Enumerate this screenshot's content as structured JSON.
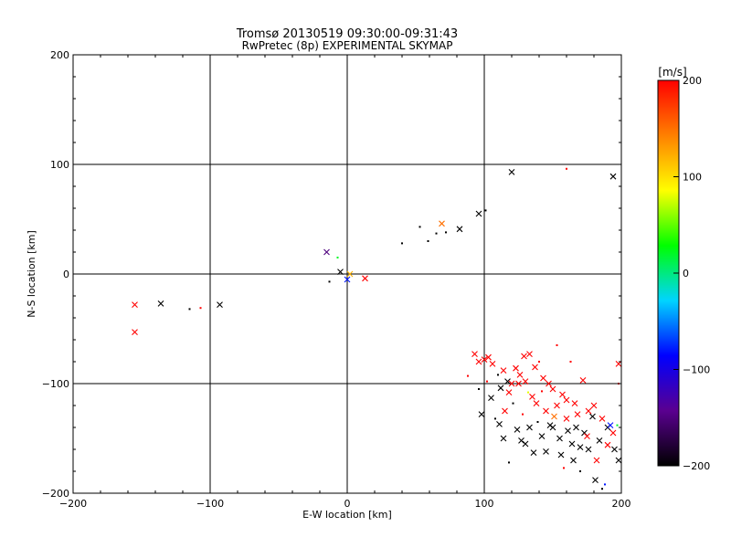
{
  "chart_data": {
    "type": "scatter",
    "title": "Tromsø 20130519 09:30:00-09:31:43",
    "subtitle": "RwPretec (8p) EXPERIMENTAL SKYMAP",
    "xlabel": "E-W location [km]",
    "ylabel": "N-S location [km]",
    "xlim": [
      -200,
      200
    ],
    "ylim": [
      -200,
      200
    ],
    "xticks": [
      -200,
      -100,
      0,
      100,
      200
    ],
    "yticks": [
      -200,
      -100,
      0,
      100,
      200
    ],
    "grid": true,
    "colorbar": {
      "label": "[m/s]",
      "range": [
        -200,
        200
      ],
      "ticks": [
        -200,
        -100,
        0,
        100,
        200
      ],
      "stops": [
        "#000000",
        "#5a0090",
        "#0000ff",
        "#00d4ff",
        "#00ff00",
        "#ffff00",
        "#ff8000",
        "#ff0000"
      ]
    },
    "points": [
      {
        "x": -155,
        "y": -28,
        "v": 200,
        "m": "x"
      },
      {
        "x": -155,
        "y": -53,
        "v": 200,
        "m": "x"
      },
      {
        "x": -136,
        "y": -27,
        "v": -200,
        "m": "x"
      },
      {
        "x": -115,
        "y": -32,
        "v": -200,
        "m": "d"
      },
      {
        "x": -107,
        "y": -31,
        "v": 200,
        "m": "d"
      },
      {
        "x": -93,
        "y": -28,
        "v": -200,
        "m": "x"
      },
      {
        "x": -15,
        "y": 20,
        "v": -150,
        "m": "x"
      },
      {
        "x": -13,
        "y": -7,
        "v": -200,
        "m": "d"
      },
      {
        "x": -7,
        "y": 15,
        "v": 20,
        "m": "d"
      },
      {
        "x": -5,
        "y": 2,
        "v": -200,
        "m": "x"
      },
      {
        "x": 0,
        "y": -5,
        "v": -80,
        "m": "x"
      },
      {
        "x": 2,
        "y": 0,
        "v": 120,
        "m": "x"
      },
      {
        "x": 13,
        "y": -4,
        "v": 200,
        "m": "x"
      },
      {
        "x": 40,
        "y": 28,
        "v": -200,
        "m": "d"
      },
      {
        "x": 53,
        "y": 43,
        "v": -200,
        "m": "d"
      },
      {
        "x": 59,
        "y": 30,
        "v": -200,
        "m": "d"
      },
      {
        "x": 65,
        "y": 37,
        "v": -200,
        "m": "d"
      },
      {
        "x": 69,
        "y": 46,
        "v": 150,
        "m": "x"
      },
      {
        "x": 72,
        "y": 38,
        "v": -200,
        "m": "d"
      },
      {
        "x": 82,
        "y": 41,
        "v": -200,
        "m": "x"
      },
      {
        "x": 96,
        "y": 55,
        "v": -200,
        "m": "x"
      },
      {
        "x": 101,
        "y": 58,
        "v": -200,
        "m": "d"
      },
      {
        "x": 120,
        "y": 93,
        "v": -200,
        "m": "x"
      },
      {
        "x": 160,
        "y": 96,
        "v": 200,
        "m": "d"
      },
      {
        "x": 194,
        "y": 89,
        "v": -200,
        "m": "x"
      },
      {
        "x": 88,
        "y": -93,
        "v": 200,
        "m": "d"
      },
      {
        "x": 93,
        "y": -73,
        "v": 200,
        "m": "x"
      },
      {
        "x": 96,
        "y": -80,
        "v": 200,
        "m": "x"
      },
      {
        "x": 100,
        "y": -78,
        "v": 200,
        "m": "x"
      },
      {
        "x": 103,
        "y": -76,
        "v": 200,
        "m": "x"
      },
      {
        "x": 106,
        "y": -82,
        "v": 200,
        "m": "x"
      },
      {
        "x": 102,
        "y": -98,
        "v": 200,
        "m": "d"
      },
      {
        "x": 110,
        "y": -92,
        "v": -200,
        "m": "d"
      },
      {
        "x": 114,
        "y": -88,
        "v": 200,
        "m": "x"
      },
      {
        "x": 117,
        "y": -98,
        "v": -200,
        "m": "x"
      },
      {
        "x": 120,
        "y": -100,
        "v": 200,
        "m": "x"
      },
      {
        "x": 123,
        "y": -86,
        "v": 200,
        "m": "x"
      },
      {
        "x": 126,
        "y": -92,
        "v": 200,
        "m": "x"
      },
      {
        "x": 129,
        "y": -75,
        "v": 200,
        "m": "x"
      },
      {
        "x": 133,
        "y": -73,
        "v": 200,
        "m": "x"
      },
      {
        "x": 137,
        "y": -85,
        "v": 200,
        "m": "x"
      },
      {
        "x": 140,
        "y": -80,
        "v": 200,
        "m": "d"
      },
      {
        "x": 143,
        "y": -95,
        "v": 200,
        "m": "x"
      },
      {
        "x": 147,
        "y": -100,
        "v": 200,
        "m": "x"
      },
      {
        "x": 150,
        "y": -105,
        "v": 200,
        "m": "x"
      },
      {
        "x": 153,
        "y": -65,
        "v": 200,
        "m": "d"
      },
      {
        "x": 157,
        "y": -110,
        "v": 200,
        "m": "x"
      },
      {
        "x": 160,
        "y": -115,
        "v": 200,
        "m": "x"
      },
      {
        "x": 163,
        "y": -80,
        "v": 200,
        "m": "d"
      },
      {
        "x": 166,
        "y": -118,
        "v": 200,
        "m": "x"
      },
      {
        "x": 172,
        "y": -97,
        "v": 200,
        "m": "x"
      },
      {
        "x": 176,
        "y": -125,
        "v": 200,
        "m": "x"
      },
      {
        "x": 180,
        "y": -120,
        "v": 200,
        "m": "x"
      },
      {
        "x": 186,
        "y": -132,
        "v": 200,
        "m": "x"
      },
      {
        "x": 194,
        "y": -145,
        "v": 200,
        "m": "x"
      },
      {
        "x": 198,
        "y": -82,
        "v": 200,
        "m": "x"
      },
      {
        "x": 198,
        "y": -100,
        "v": 200,
        "m": "d"
      },
      {
        "x": 96,
        "y": -105,
        "v": -200,
        "m": "d"
      },
      {
        "x": 98,
        "y": -128,
        "v": -200,
        "m": "x"
      },
      {
        "x": 105,
        "y": -113,
        "v": -200,
        "m": "x"
      },
      {
        "x": 108,
        "y": -132,
        "v": -200,
        "m": "d"
      },
      {
        "x": 111,
        "y": -137,
        "v": -200,
        "m": "x"
      },
      {
        "x": 114,
        "y": -150,
        "v": -200,
        "m": "x"
      },
      {
        "x": 118,
        "y": -172,
        "v": -200,
        "m": "d"
      },
      {
        "x": 121,
        "y": -118,
        "v": -200,
        "m": "d"
      },
      {
        "x": 124,
        "y": -142,
        "v": -200,
        "m": "x"
      },
      {
        "x": 127,
        "y": -152,
        "v": -200,
        "m": "x"
      },
      {
        "x": 130,
        "y": -155,
        "v": -200,
        "m": "x"
      },
      {
        "x": 133,
        "y": -140,
        "v": -200,
        "m": "x"
      },
      {
        "x": 136,
        "y": -163,
        "v": -200,
        "m": "x"
      },
      {
        "x": 139,
        "y": -135,
        "v": -200,
        "m": "d"
      },
      {
        "x": 142,
        "y": -148,
        "v": -200,
        "m": "x"
      },
      {
        "x": 145,
        "y": -162,
        "v": -200,
        "m": "x"
      },
      {
        "x": 148,
        "y": -138,
        "v": -200,
        "m": "x"
      },
      {
        "x": 151,
        "y": -130,
        "v": 150,
        "m": "x"
      },
      {
        "x": 155,
        "y": -150,
        "v": -200,
        "m": "x"
      },
      {
        "x": 158,
        "y": -177,
        "v": 200,
        "m": "d"
      },
      {
        "x": 161,
        "y": -143,
        "v": -200,
        "m": "x"
      },
      {
        "x": 164,
        "y": -155,
        "v": -200,
        "m": "x"
      },
      {
        "x": 167,
        "y": -140,
        "v": -200,
        "m": "x"
      },
      {
        "x": 170,
        "y": -158,
        "v": -200,
        "m": "x"
      },
      {
        "x": 173,
        "y": -145,
        "v": -200,
        "m": "x"
      },
      {
        "x": 176,
        "y": -160,
        "v": -200,
        "m": "x"
      },
      {
        "x": 179,
        "y": -130,
        "v": -200,
        "m": "x"
      },
      {
        "x": 181,
        "y": -188,
        "v": -200,
        "m": "x"
      },
      {
        "x": 184,
        "y": -152,
        "v": -200,
        "m": "x"
      },
      {
        "x": 186,
        "y": -196,
        "v": -200,
        "m": "d"
      },
      {
        "x": 188,
        "y": -192,
        "v": -80,
        "m": "d"
      },
      {
        "x": 190,
        "y": -140,
        "v": -200,
        "m": "x"
      },
      {
        "x": 192,
        "y": -138,
        "v": -80,
        "m": "x"
      },
      {
        "x": 195,
        "y": -160,
        "v": -200,
        "m": "x"
      },
      {
        "x": 197,
        "y": -138,
        "v": 20,
        "m": "d"
      },
      {
        "x": 198,
        "y": -170,
        "v": -200,
        "m": "x"
      },
      {
        "x": 132,
        "y": -108,
        "v": 80,
        "m": "d"
      },
      {
        "x": 125,
        "y": -100,
        "v": 200,
        "m": "x"
      },
      {
        "x": 138,
        "y": -118,
        "v": 200,
        "m": "x"
      },
      {
        "x": 145,
        "y": -125,
        "v": 200,
        "m": "x"
      },
      {
        "x": 153,
        "y": -120,
        "v": 200,
        "m": "x"
      },
      {
        "x": 160,
        "y": -132,
        "v": 200,
        "m": "x"
      },
      {
        "x": 168,
        "y": -128,
        "v": 200,
        "m": "x"
      },
      {
        "x": 175,
        "y": -148,
        "v": 200,
        "m": "x"
      },
      {
        "x": 182,
        "y": -170,
        "v": 200,
        "m": "x"
      },
      {
        "x": 190,
        "y": -156,
        "v": 200,
        "m": "x"
      },
      {
        "x": 112,
        "y": -104,
        "v": -200,
        "m": "x"
      },
      {
        "x": 118,
        "y": -108,
        "v": 200,
        "m": "x"
      },
      {
        "x": 130,
        "y": -98,
        "v": 200,
        "m": "x"
      },
      {
        "x": 135,
        "y": -112,
        "v": 200,
        "m": "x"
      },
      {
        "x": 142,
        "y": -107,
        "v": 200,
        "m": "d"
      },
      {
        "x": 150,
        "y": -140,
        "v": -200,
        "m": "x"
      },
      {
        "x": 165,
        "y": -170,
        "v": -200,
        "m": "x"
      },
      {
        "x": 170,
        "y": -180,
        "v": -200,
        "m": "d"
      },
      {
        "x": 115,
        "y": -125,
        "v": 200,
        "m": "x"
      },
      {
        "x": 128,
        "y": -128,
        "v": 200,
        "m": "d"
      },
      {
        "x": 156,
        "y": -165,
        "v": -200,
        "m": "x"
      }
    ]
  }
}
